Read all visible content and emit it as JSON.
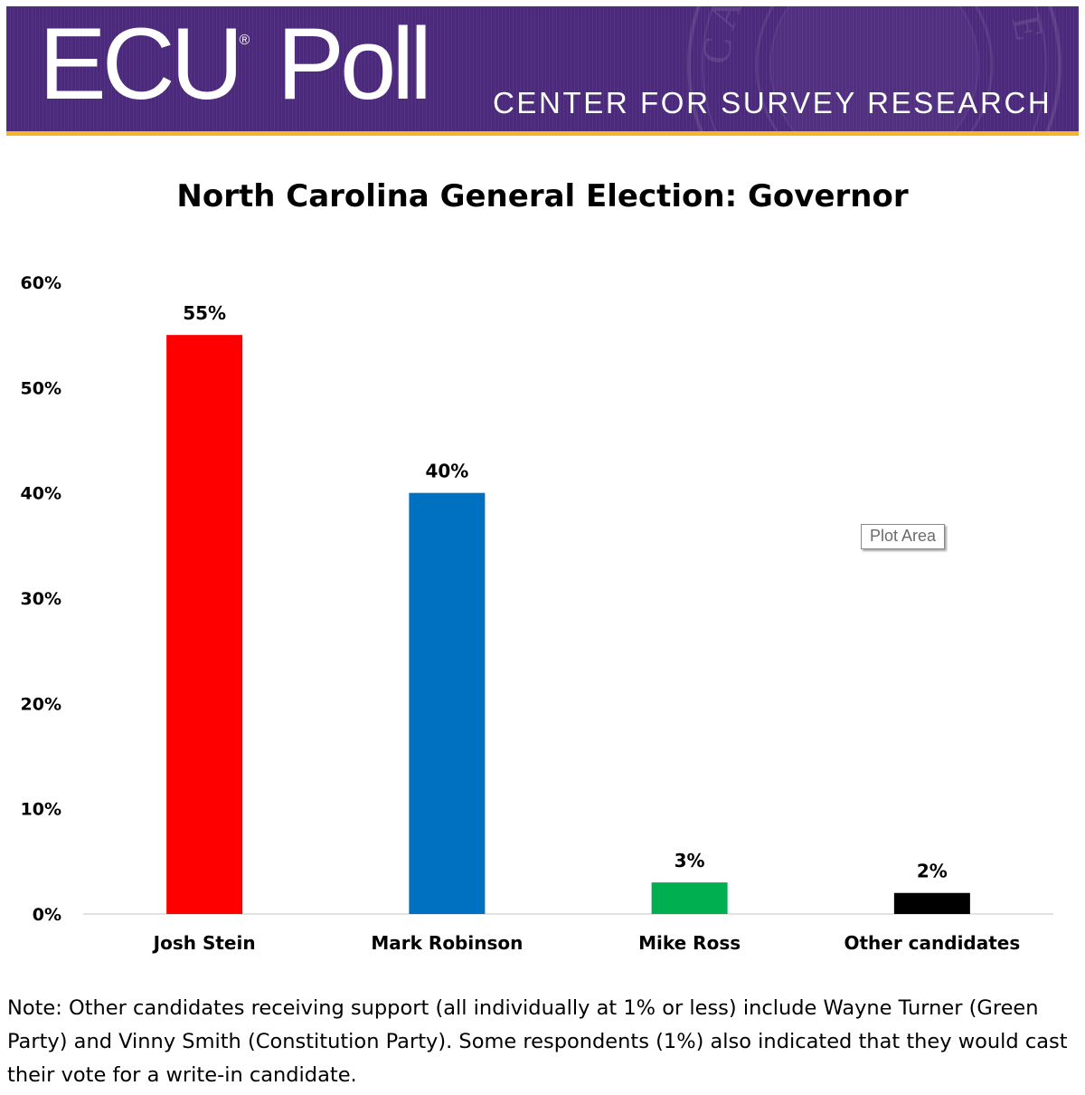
{
  "header": {
    "logo_text": "ECU Poll",
    "logo_mark": "®",
    "subtitle": "CENTER FOR SURVEY RESEARCH",
    "seal_text": "CAROLINA UNIVERSITY",
    "colors": {
      "purple": "#4b2a7b",
      "gold": "#f4b52a"
    }
  },
  "tooltip": {
    "label": "Plot Area"
  },
  "chart_data": {
    "type": "bar",
    "title": "North Carolina General Election: Governor",
    "xlabel": "",
    "ylabel": "",
    "categories": [
      "Josh Stein",
      "Mark Robinson",
      "Mike Ross",
      "Other candidates"
    ],
    "values": [
      55,
      40,
      3,
      2
    ],
    "data_labels": [
      "55%",
      "40%",
      "3%",
      "2%"
    ],
    "colors": [
      "#ff0000",
      "#0070c0",
      "#00b050",
      "#000000"
    ],
    "ylim": [
      0,
      60
    ],
    "yticks": [
      "0%",
      "10%",
      "20%",
      "30%",
      "40%",
      "50%",
      "60%"
    ],
    "grid": false,
    "legend": "none"
  },
  "note": "Note: Other candidates receiving support (all individually at 1% or less) include Wayne Turner (Green Party) and Vinny Smith (Constitution Party). Some respondents (1%) also indicated that they would cast their vote for a write-in candidate."
}
